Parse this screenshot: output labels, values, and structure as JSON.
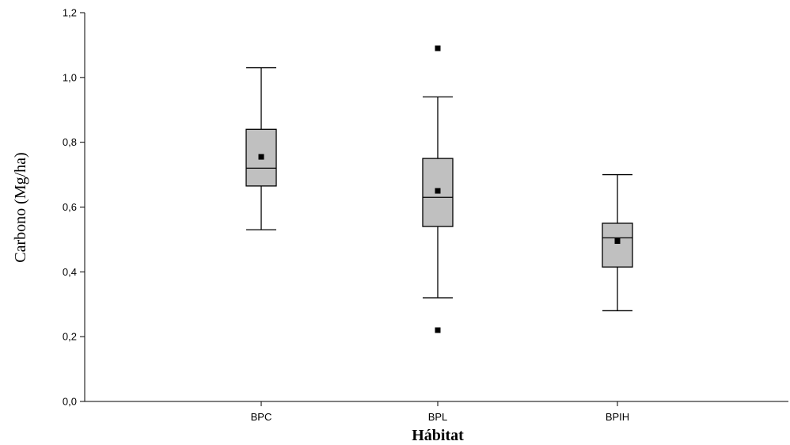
{
  "chart_data": {
    "type": "boxplot",
    "xlabel": "Hábitat",
    "ylabel": "Carbono (Mg/ha)",
    "ylim": [
      0,
      1.2
    ],
    "yticks": [
      "0,0",
      "0,2",
      "0,4",
      "0,6",
      "0,8",
      "1,0",
      "1,2"
    ],
    "ytick_values": [
      0,
      0.2,
      0.4,
      0.6,
      0.8,
      1.0,
      1.2
    ],
    "categories": [
      "BPC",
      "BPL",
      "BPIH"
    ],
    "boxes": [
      {
        "category": "BPC",
        "whisker_low": 0.53,
        "q1": 0.665,
        "median": 0.72,
        "q3": 0.84,
        "whisker_high": 1.03,
        "mean": 0.755,
        "outliers": []
      },
      {
        "category": "BPL",
        "whisker_low": 0.32,
        "q1": 0.54,
        "median": 0.63,
        "q3": 0.75,
        "whisker_high": 0.94,
        "mean": 0.65,
        "outliers": [
          1.09,
          0.22
        ]
      },
      {
        "category": "BPIH",
        "whisker_low": 0.28,
        "q1": 0.415,
        "median": 0.505,
        "q3": 0.55,
        "whisker_high": 0.7,
        "mean": 0.495,
        "outliers": []
      }
    ],
    "colors": {
      "box_fill": "#c0c0c0",
      "stroke": "#000000",
      "marker": "#000000"
    },
    "grid": false,
    "legend": "none"
  }
}
